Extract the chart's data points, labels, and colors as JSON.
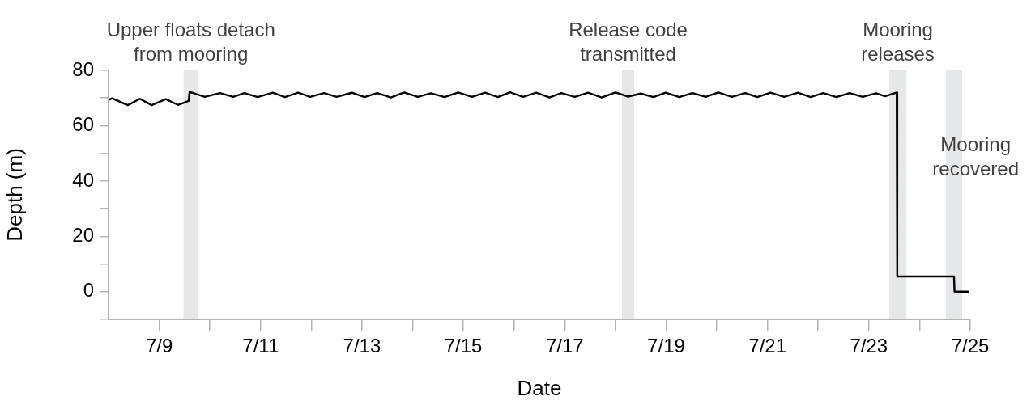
{
  "chart_data": {
    "type": "line",
    "xlabel": "Date",
    "ylabel": "Depth (m)",
    "xlim": [
      "--07-08",
      "--07-25"
    ],
    "xticks": [
      {
        "value": "--07-09",
        "label": "7/9"
      },
      {
        "value": "--07-10",
        "label": null
      },
      {
        "value": "--07-11",
        "label": "7/11"
      },
      {
        "value": "--07-12",
        "label": null
      },
      {
        "value": "--07-13",
        "label": "7/13"
      },
      {
        "value": "--07-14",
        "label": null
      },
      {
        "value": "--07-15",
        "label": "7/15"
      },
      {
        "value": "--07-16",
        "label": null
      },
      {
        "value": "--07-17",
        "label": "7/17"
      },
      {
        "value": "--07-18",
        "label": null
      },
      {
        "value": "--07-19",
        "label": "7/19"
      },
      {
        "value": "--07-20",
        "label": null
      },
      {
        "value": "--07-21",
        "label": "7/21"
      },
      {
        "value": "--07-22",
        "label": null
      },
      {
        "value": "--07-23",
        "label": "7/23"
      },
      {
        "value": "--07-24",
        "label": null
      },
      {
        "value": "--07-25",
        "label": "7/25"
      }
    ],
    "ylim": [
      -10,
      80
    ],
    "yticks": [
      {
        "value": -10,
        "label": null
      },
      0,
      {
        "value": 10,
        "label": null
      },
      20,
      {
        "value": 30,
        "label": null
      },
      40,
      {
        "value": 50,
        "label": null
      },
      60,
      {
        "value": 70,
        "label": null
      },
      80
    ],
    "grid": false,
    "legend": false,
    "marker": "none",
    "bands": [
      {
        "axis": "x",
        "from": "--07-09T11:31",
        "to": "--07-09T18:29",
        "label": "Upper floats detach from mooring",
        "color": "#e6e7e9"
      },
      {
        "axis": "x",
        "from": "--07-18T03:07",
        "to": "--07-18T08:53",
        "label": "Release code transmitted",
        "color": "#e6e7e9"
      },
      {
        "axis": "x",
        "from": "--07-23T09:36",
        "to": "--07-23T17:46",
        "label": "Mooring releases",
        "color": "#e6e7e9"
      },
      {
        "axis": "x",
        "from": "--07-24T12:29",
        "to": "--07-24T20:10",
        "label": "Mooring recovered",
        "color": "#e6e7e9"
      }
    ],
    "series": [
      {
        "color": "#000000",
        "x": [
          "--07-08T00:00",
          "--07-08T01:41",
          "--07-08T09:07",
          "--07-08T14:53",
          "--07-08T20:24",
          "--07-09T03:07",
          "--07-09T08:53",
          "--07-09T13:55",
          "--07-09T14:24",
          "--07-09T21:36",
          "--07-10T04:48",
          "--07-10T11:02",
          "--07-10T16:19",
          "--07-10T22:34",
          "--07-11T05:46",
          "--07-11T11:31",
          "--07-11T17:46",
          "--07-11T23:31",
          "--07-12T06:00",
          "--07-12T12:00",
          "--07-12T19:12",
          "--07-13T01:12",
          "--07-13T07:12",
          "--07-13T13:41",
          "--07-13T19:55",
          "--07-14T02:24",
          "--07-14T08:38",
          "--07-14T15:07",
          "--07-14T21:36",
          "--07-15T04:05",
          "--07-15T10:19",
          "--07-15T16:19",
          "--07-15T22:05",
          "--07-16T04:19",
          "--07-16T10:34",
          "--07-16T16:48",
          "--07-16T22:19",
          "--07-17T04:48",
          "--07-17T11:02",
          "--07-17T17:31",
          "--07-18T00:00",
          "--07-18T06:00",
          "--07-18T12:00",
          "--07-18T18:00",
          "--07-18T23:46",
          "--07-19T06:14",
          "--07-19T12:29",
          "--07-19T18:43",
          "--07-20T00:43",
          "--07-20T07:12",
          "--07-20T13:26",
          "--07-20T19:12",
          "--07-21T01:26",
          "--07-21T07:55",
          "--07-21T14:24",
          "--07-21T20:24",
          "--07-22T02:24",
          "--07-22T08:38",
          "--07-22T14:53",
          "--07-22T21:07",
          "--07-23T03:22",
          "--07-23T07:41",
          "--07-23T13:12",
          "--07-23T13:26",
          "--07-24T16:19",
          "--07-24T16:34",
          "--07-24T23:17"
        ],
        "values": [
          69.3,
          69.9,
          67.4,
          69.7,
          67.4,
          69.6,
          67.5,
          68.9,
          72.2,
          70.4,
          71.8,
          70.4,
          71.8,
          70.3,
          71.9,
          70.3,
          71.9,
          70.4,
          71.8,
          70.4,
          71.9,
          70.3,
          71.8,
          70.2,
          72.0,
          70.4,
          71.7,
          70.3,
          72.0,
          70.4,
          71.9,
          70.3,
          72.1,
          70.4,
          71.9,
          70.2,
          71.8,
          70.4,
          71.9,
          70.2,
          72.0,
          70.5,
          71.6,
          70.3,
          71.9,
          70.3,
          71.8,
          70.4,
          72.0,
          70.4,
          71.8,
          70.3,
          71.9,
          70.4,
          71.9,
          70.3,
          71.8,
          70.3,
          71.8,
          70.4,
          71.7,
          70.6,
          72.0,
          5.5,
          5.5,
          0,
          0
        ]
      }
    ]
  }
}
